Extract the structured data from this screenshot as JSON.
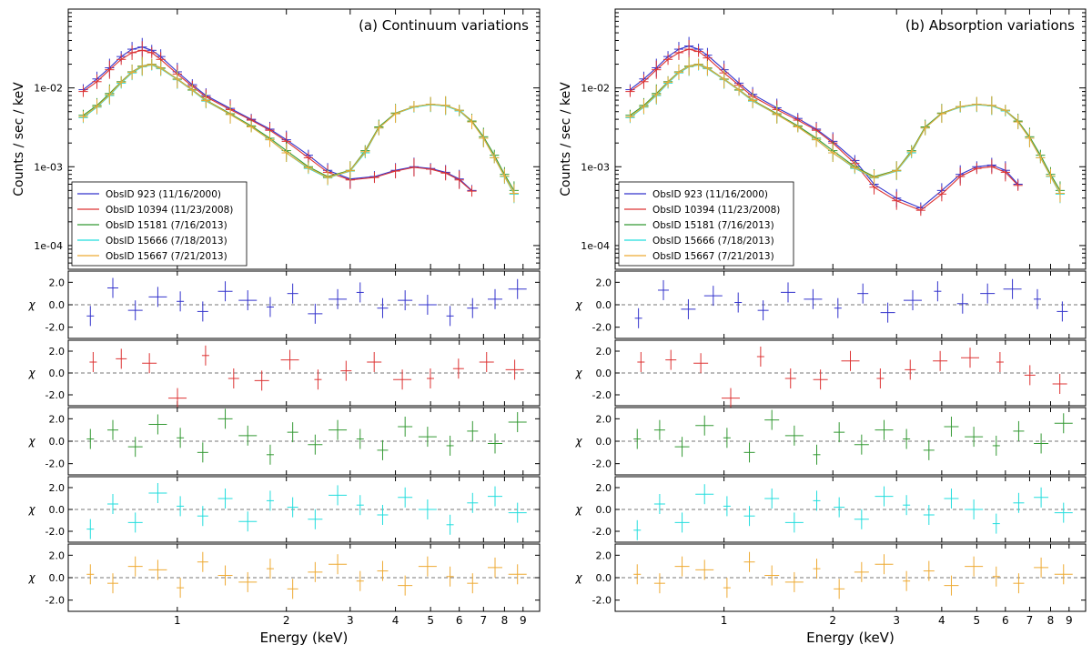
{
  "chart_data": [
    {
      "type": "line",
      "panel": "a",
      "title": "(a) Continuum variations",
      "xlabel": "Energy (keV)",
      "ylabel": "Counts / sec / keV",
      "residual_ylabel": "χ",
      "xscale": "log",
      "yscale": "log",
      "xlim": [
        0.5,
        10
      ],
      "ylim": [
        5e-05,
        0.1
      ],
      "y_ticks": [
        0.0001,
        0.001,
        0.01
      ],
      "y_tick_labels": [
        "1e-04",
        "1e-03",
        "1e-02"
      ],
      "x_ticks": [
        1,
        2,
        3,
        4,
        5,
        6,
        7,
        8,
        9
      ],
      "x_tick_labels": [
        "1",
        "2",
        "3",
        "4",
        "5",
        "6",
        "7",
        "8",
        "9"
      ],
      "residual_ylim": [
        -3,
        3
      ],
      "residual_ticks": [
        2,
        0,
        -2
      ],
      "residual_tick_labels": [
        "2.0",
        "0.0",
        "-2.0"
      ],
      "legend_position": "lower-left",
      "series": [
        {
          "name": "ObsID 923 (11/16/2000)",
          "color": "#3333cc",
          "x": [
            0.55,
            0.6,
            0.65,
            0.7,
            0.75,
            0.8,
            0.85,
            0.9,
            1.0,
            1.1,
            1.2,
            1.4,
            1.6,
            1.8,
            2.0,
            2.3,
            2.6,
            3.0,
            3.5,
            4.0,
            4.5,
            5.0,
            5.5,
            6.0,
            6.5
          ],
          "y": [
            0.0095,
            0.013,
            0.018,
            0.025,
            0.031,
            0.033,
            0.03,
            0.025,
            0.016,
            0.011,
            0.008,
            0.0055,
            0.004,
            0.003,
            0.0022,
            0.0014,
            0.0009,
            0.0007,
            0.00075,
            0.0009,
            0.001,
            0.00095,
            0.00085,
            0.0007,
            0.0005
          ],
          "residuals": [
            -1.0,
            1.5,
            -0.5,
            0.7,
            0.3,
            -0.6,
            1.2,
            0.4,
            -0.2,
            1.0,
            -0.8,
            0.5,
            1.1,
            -0.3,
            0.4,
            0.0,
            -1.0,
            -0.3,
            0.5,
            1.4
          ]
        },
        {
          "name": "ObsID 10394 (11/23/2008)",
          "color": "#dd3333",
          "x": [
            0.55,
            0.6,
            0.65,
            0.7,
            0.75,
            0.8,
            0.85,
            0.9,
            1.0,
            1.1,
            1.2,
            1.4,
            1.6,
            1.8,
            2.0,
            2.3,
            2.6,
            3.0,
            3.5,
            4.0,
            4.5,
            5.0,
            5.5,
            6.0,
            6.5
          ],
          "y": [
            0.009,
            0.012,
            0.017,
            0.023,
            0.028,
            0.03,
            0.028,
            0.023,
            0.015,
            0.0105,
            0.0077,
            0.0053,
            0.0039,
            0.0029,
            0.0021,
            0.0013,
            0.00085,
            0.00068,
            0.00073,
            0.00088,
            0.00098,
            0.00093,
            0.00083,
            0.00068,
            0.00049
          ],
          "residuals": [
            1.0,
            1.3,
            0.9,
            -2.3,
            1.6,
            -0.5,
            -0.7,
            1.2,
            -0.6,
            0.2,
            1.0,
            -0.6,
            -0.5,
            0.4,
            1.0,
            0.3
          ]
        },
        {
          "name": "ObsID 15181 (7/16/2013)",
          "color": "#339933",
          "x": [
            0.55,
            0.6,
            0.65,
            0.7,
            0.75,
            0.8,
            0.85,
            0.9,
            1.0,
            1.1,
            1.2,
            1.4,
            1.6,
            1.8,
            2.0,
            2.3,
            2.6,
            3.0,
            3.3,
            3.6,
            4.0,
            4.5,
            5.0,
            5.5,
            6.0,
            6.5,
            7.0,
            7.5,
            8.0,
            8.5
          ],
          "y": [
            0.0045,
            0.006,
            0.0085,
            0.012,
            0.016,
            0.019,
            0.02,
            0.018,
            0.013,
            0.0095,
            0.007,
            0.0047,
            0.0033,
            0.0023,
            0.0016,
            0.001,
            0.00075,
            0.0009,
            0.0016,
            0.0032,
            0.0048,
            0.0058,
            0.0062,
            0.006,
            0.0052,
            0.0038,
            0.0024,
            0.0014,
            0.0008,
            0.0005
          ],
          "residuals": [
            0.2,
            1.0,
            -0.5,
            1.5,
            0.3,
            -1.0,
            2.0,
            0.5,
            -1.2,
            0.8,
            -0.3,
            1.0,
            0.2,
            -0.8,
            1.3,
            0.4,
            -0.4,
            0.9,
            -0.2,
            1.7
          ]
        },
        {
          "name": "ObsID 15666 (7/18/2013)",
          "color": "#22dddd",
          "x": [
            0.55,
            0.6,
            0.65,
            0.7,
            0.75,
            0.8,
            0.85,
            0.9,
            1.0,
            1.1,
            1.2,
            1.4,
            1.6,
            1.8,
            2.0,
            2.3,
            2.6,
            3.0,
            3.3,
            3.6,
            4.0,
            4.5,
            5.0,
            5.5,
            6.0,
            6.5,
            7.0,
            7.5,
            8.0,
            8.5
          ],
          "y": [
            0.0042,
            0.0057,
            0.008,
            0.0115,
            0.0155,
            0.0185,
            0.0195,
            0.0175,
            0.0127,
            0.0093,
            0.0068,
            0.0046,
            0.0032,
            0.0022,
            0.0015,
            0.00095,
            0.00072,
            0.00088,
            0.0015,
            0.0031,
            0.0047,
            0.0057,
            0.0061,
            0.0059,
            0.0051,
            0.0037,
            0.0023,
            0.0013,
            0.00075,
            0.00045
          ],
          "residuals": [
            -1.8,
            0.5,
            -1.2,
            1.5,
            0.3,
            -0.6,
            1.0,
            -1.1,
            0.8,
            0.2,
            -0.9,
            1.3,
            0.4,
            -0.5,
            1.1,
            0.0,
            -1.4,
            0.6,
            1.2,
            -0.3
          ]
        },
        {
          "name": "ObsID 15667 (7/21/2013)",
          "color": "#eeaa33",
          "x": [
            0.55,
            0.6,
            0.65,
            0.7,
            0.75,
            0.8,
            0.85,
            0.9,
            1.0,
            1.1,
            1.2,
            1.4,
            1.6,
            1.8,
            2.0,
            2.3,
            2.6,
            3.0,
            3.3,
            3.6,
            4.0,
            4.5,
            5.0,
            5.5,
            6.0,
            6.5,
            7.0,
            7.5,
            8.0,
            8.5
          ],
          "y": [
            0.0043,
            0.0058,
            0.0082,
            0.0118,
            0.0158,
            0.0188,
            0.0198,
            0.0178,
            0.0129,
            0.0094,
            0.0069,
            0.0046,
            0.0032,
            0.0022,
            0.0015,
            0.00097,
            0.00073,
            0.00089,
            0.00155,
            0.0031,
            0.0047,
            0.0058,
            0.0062,
            0.006,
            0.0052,
            0.0037,
            0.0023,
            0.0013,
            0.00076,
            0.00046
          ],
          "residuals": [
            0.3,
            -0.5,
            1.0,
            0.7,
            -0.9,
            1.4,
            0.2,
            -0.4,
            0.8,
            -1.0,
            0.5,
            1.2,
            -0.3,
            0.6,
            -0.7,
            1.0,
            0.1,
            -0.5,
            0.9,
            0.3
          ]
        }
      ]
    },
    {
      "type": "line",
      "panel": "b",
      "title": "(b) Absorption variations",
      "xlabel": "Energy (keV)",
      "ylabel": "Counts / sec / keV",
      "residual_ylabel": "χ",
      "xscale": "log",
      "yscale": "log",
      "xlim": [
        0.5,
        10
      ],
      "ylim": [
        5e-05,
        0.1
      ],
      "y_ticks": [
        0.0001,
        0.001,
        0.01
      ],
      "y_tick_labels": [
        "1e-04",
        "1e-03",
        "1e-02"
      ],
      "x_ticks": [
        1,
        2,
        3,
        4,
        5,
        6,
        7,
        8,
        9
      ],
      "x_tick_labels": [
        "1",
        "2",
        "3",
        "4",
        "5",
        "6",
        "7",
        "8",
        "9"
      ],
      "residual_ylim": [
        -3,
        3
      ],
      "residual_ticks": [
        2,
        0,
        -2
      ],
      "residual_tick_labels": [
        "2.0",
        "0.0",
        "-2.0"
      ],
      "legend_position": "lower-left",
      "series": [
        {
          "name": "ObsID 923 (11/16/2000)",
          "color": "#3333cc",
          "x": [
            0.55,
            0.6,
            0.65,
            0.7,
            0.75,
            0.8,
            0.85,
            0.9,
            1.0,
            1.1,
            1.2,
            1.4,
            1.6,
            1.8,
            2.0,
            2.3,
            2.6,
            3.0,
            3.5,
            4.0,
            4.5,
            5.0,
            5.5,
            6.0,
            6.5
          ],
          "y": [
            0.0095,
            0.013,
            0.018,
            0.025,
            0.031,
            0.034,
            0.031,
            0.026,
            0.017,
            0.0115,
            0.0083,
            0.0056,
            0.0041,
            0.003,
            0.0021,
            0.0012,
            0.0006,
            0.0004,
            0.0003,
            0.0005,
            0.0008,
            0.001,
            0.00105,
            0.0009,
            0.0006
          ],
          "residuals": [
            -1.2,
            1.3,
            -0.4,
            0.8,
            0.2,
            -0.5,
            1.1,
            0.5,
            -0.3,
            1.0,
            -0.7,
            0.4,
            1.2,
            0.1,
            1.0,
            1.4,
            0.5,
            -0.6
          ]
        },
        {
          "name": "ObsID 10394 (11/23/2008)",
          "color": "#dd3333",
          "x": [
            0.55,
            0.6,
            0.65,
            0.7,
            0.75,
            0.8,
            0.85,
            0.9,
            1.0,
            1.1,
            1.2,
            1.4,
            1.6,
            1.8,
            2.0,
            2.3,
            2.6,
            3.0,
            3.5,
            4.0,
            4.5,
            5.0,
            5.5,
            6.0,
            6.5
          ],
          "y": [
            0.009,
            0.012,
            0.017,
            0.023,
            0.028,
            0.031,
            0.029,
            0.024,
            0.0155,
            0.0108,
            0.0078,
            0.0053,
            0.0039,
            0.0029,
            0.002,
            0.0011,
            0.00055,
            0.00037,
            0.00028,
            0.00045,
            0.00075,
            0.00095,
            0.001,
            0.00085,
            0.00058
          ],
          "residuals": [
            1.0,
            1.2,
            0.9,
            -2.3,
            1.5,
            -0.5,
            -0.6,
            1.1,
            -0.5,
            0.3,
            1.1,
            1.4,
            1.0,
            -0.2,
            -1.0
          ]
        },
        {
          "name": "ObsID 15181 (7/16/2013)",
          "color": "#339933",
          "x": [
            0.55,
            0.6,
            0.65,
            0.7,
            0.75,
            0.8,
            0.85,
            0.9,
            1.0,
            1.1,
            1.2,
            1.4,
            1.6,
            1.8,
            2.0,
            2.3,
            2.6,
            3.0,
            3.3,
            3.6,
            4.0,
            4.5,
            5.0,
            5.5,
            6.0,
            6.5,
            7.0,
            7.5,
            8.0,
            8.5
          ],
          "y": [
            0.0045,
            0.006,
            0.0085,
            0.012,
            0.016,
            0.019,
            0.02,
            0.018,
            0.013,
            0.0095,
            0.007,
            0.0047,
            0.0033,
            0.0023,
            0.0016,
            0.001,
            0.00075,
            0.0009,
            0.0016,
            0.0032,
            0.0048,
            0.0058,
            0.0062,
            0.006,
            0.0052,
            0.0038,
            0.0024,
            0.0014,
            0.0008,
            0.0005
          ],
          "residuals": [
            0.2,
            1.0,
            -0.5,
            1.4,
            0.3,
            -1.0,
            1.9,
            0.5,
            -1.2,
            0.8,
            -0.3,
            1.0,
            0.2,
            -0.8,
            1.3,
            0.4,
            -0.4,
            0.9,
            -0.2,
            1.6
          ]
        },
        {
          "name": "ObsID 15666 (7/18/2013)",
          "color": "#22dddd",
          "x": [
            0.55,
            0.6,
            0.65,
            0.7,
            0.75,
            0.8,
            0.85,
            0.9,
            1.0,
            1.1,
            1.2,
            1.4,
            1.6,
            1.8,
            2.0,
            2.3,
            2.6,
            3.0,
            3.3,
            3.6,
            4.0,
            4.5,
            5.0,
            5.5,
            6.0,
            6.5,
            7.0,
            7.5,
            8.0,
            8.5
          ],
          "y": [
            0.0042,
            0.0057,
            0.008,
            0.0115,
            0.0155,
            0.0185,
            0.0195,
            0.0175,
            0.0127,
            0.0093,
            0.0068,
            0.0046,
            0.0032,
            0.0022,
            0.0015,
            0.00095,
            0.00072,
            0.00088,
            0.0015,
            0.0031,
            0.0047,
            0.0057,
            0.0061,
            0.0059,
            0.0051,
            0.0037,
            0.0023,
            0.0013,
            0.00075,
            0.00045
          ],
          "residuals": [
            -1.9,
            0.5,
            -1.2,
            1.4,
            0.3,
            -0.6,
            1.0,
            -1.2,
            0.8,
            0.2,
            -0.9,
            1.2,
            0.4,
            -0.5,
            1.0,
            0.0,
            -1.3,
            0.6,
            1.1,
            -0.3
          ]
        },
        {
          "name": "ObsID 15667 (7/21/2013)",
          "color": "#eeaa33",
          "x": [
            0.55,
            0.6,
            0.65,
            0.7,
            0.75,
            0.8,
            0.85,
            0.9,
            1.0,
            1.1,
            1.2,
            1.4,
            1.6,
            1.8,
            2.0,
            2.3,
            2.6,
            3.0,
            3.3,
            3.6,
            4.0,
            4.5,
            5.0,
            5.5,
            6.0,
            6.5,
            7.0,
            7.5,
            8.0,
            8.5
          ],
          "y": [
            0.0043,
            0.0058,
            0.0082,
            0.0118,
            0.0158,
            0.0188,
            0.0198,
            0.0178,
            0.0129,
            0.0094,
            0.0069,
            0.0046,
            0.0032,
            0.0022,
            0.0015,
            0.00097,
            0.00073,
            0.00089,
            0.00155,
            0.0031,
            0.0047,
            0.0058,
            0.0062,
            0.006,
            0.0052,
            0.0037,
            0.0023,
            0.0013,
            0.00076,
            0.00046
          ],
          "residuals": [
            0.3,
            -0.5,
            1.0,
            0.7,
            -0.9,
            1.4,
            0.2,
            -0.4,
            0.8,
            -1.0,
            0.5,
            1.2,
            -0.3,
            0.6,
            -0.7,
            1.0,
            0.1,
            -0.5,
            0.9,
            0.3
          ]
        }
      ]
    }
  ]
}
